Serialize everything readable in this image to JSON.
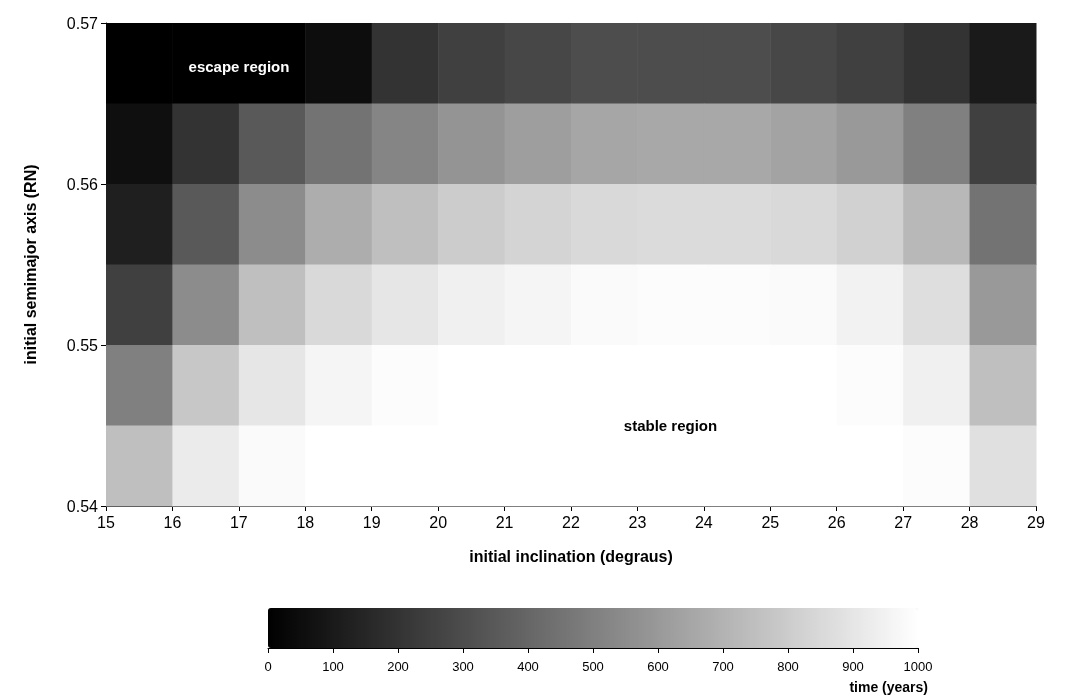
{
  "chart_data": {
    "type": "heatmap",
    "xlabel": "initial inclination (degraus)",
    "ylabel": "initial semimajor axis (RN)",
    "clabel": "time (years)",
    "xlim": [
      15,
      29
    ],
    "ylim": [
      0.54,
      0.57
    ],
    "xticks": [
      15,
      16,
      17,
      18,
      19,
      20,
      21,
      22,
      23,
      24,
      25,
      26,
      27,
      28,
      29
    ],
    "yticks": [
      0.54,
      0.55,
      0.56,
      0.57
    ],
    "clim": [
      0,
      1000
    ],
    "cticks": [
      0,
      100,
      200,
      300,
      400,
      500,
      600,
      700,
      800,
      900,
      1000
    ],
    "grid": false,
    "cells": [
      [
        0,
        0,
        0,
        50,
        200,
        250,
        280,
        300,
        300,
        300,
        280,
        250,
        200,
        100
      ],
      [
        60,
        200,
        350,
        450,
        520,
        580,
        620,
        650,
        660,
        660,
        640,
        600,
        500,
        250
      ],
      [
        120,
        350,
        550,
        680,
        750,
        800,
        830,
        850,
        860,
        860,
        850,
        820,
        720,
        450
      ],
      [
        250,
        550,
        750,
        850,
        900,
        940,
        960,
        980,
        990,
        990,
        980,
        950,
        870,
        600
      ],
      [
        500,
        780,
        900,
        960,
        990,
        1000,
        1000,
        1000,
        1000,
        1000,
        1000,
        990,
        940,
        750
      ],
      [
        750,
        920,
        980,
        1000,
        1000,
        1000,
        1000,
        1000,
        1000,
        1000,
        1000,
        1000,
        990,
        880
      ]
    ],
    "annotations": [
      "escape region",
      "stable region"
    ]
  }
}
